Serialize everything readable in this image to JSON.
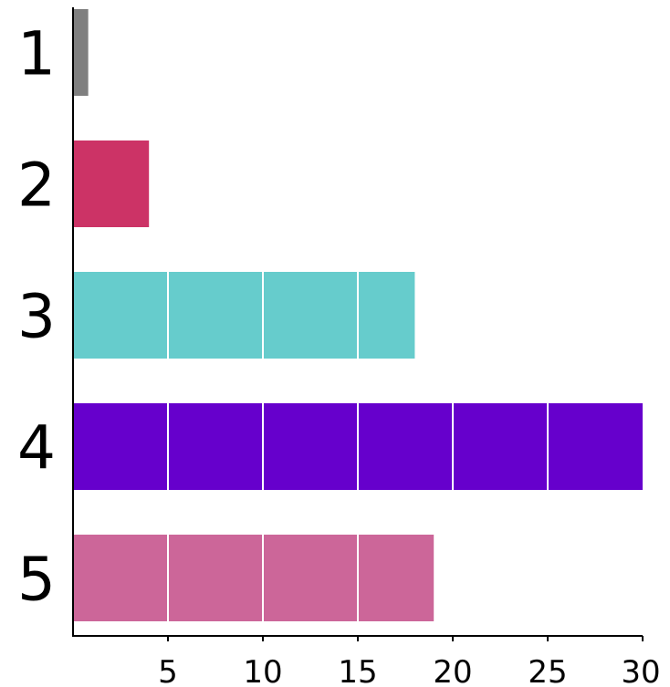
{
  "chart_data": {
    "type": "bar",
    "orientation": "horizontal",
    "categories": [
      "1",
      "2",
      "3",
      "4",
      "5"
    ],
    "values": [
      0.8,
      4,
      18,
      30,
      19
    ],
    "colors": [
      "#7f7f7f",
      "#cc3366",
      "#66cccc",
      "#6600cc",
      "#cc6699"
    ],
    "xlim": [
      0,
      30
    ],
    "x_ticks": [
      5,
      10,
      15,
      20,
      25,
      30
    ],
    "x_tick_labels": [
      "5",
      "10",
      "15",
      "20",
      "25",
      "30"
    ],
    "grid": "white segment lines at each tick inside bars",
    "title": "",
    "xlabel": "",
    "ylabel": ""
  }
}
